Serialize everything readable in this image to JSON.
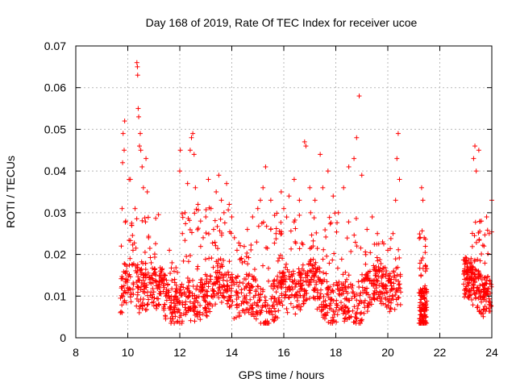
{
  "chart_data": {
    "type": "scatter",
    "title": "Day 168 of 2019, Rate Of TEC Index for receiver ucoe",
    "xlabel": "GPS time / hours",
    "ylabel": "ROTI / TECUs",
    "xlim": [
      8,
      24
    ],
    "ylim": [
      0,
      0.07
    ],
    "xticks": [
      "8",
      "10",
      "12",
      "14",
      "16",
      "18",
      "20",
      "22",
      "24"
    ],
    "yticks": [
      "0",
      "0.01",
      "0.02",
      "0.03",
      "0.04",
      "0.05",
      "0.06",
      "0.07"
    ],
    "grid": true,
    "marker": "plus",
    "color": "#ff0000",
    "coverage_segments": [
      {
        "x_start": 9.7,
        "x_end": 20.5
      },
      {
        "x_start": 21.2,
        "x_end": 21.5
      },
      {
        "x_start": 22.9,
        "x_end": 24.0
      }
    ],
    "series": [
      {
        "points": [
          [
            9.72,
            0.0095
          ],
          [
            9.75,
            0.022
          ],
          [
            9.78,
            0.031
          ],
          [
            9.8,
            0.042
          ],
          [
            9.82,
            0.049
          ],
          [
            9.86,
            0.045
          ],
          [
            9.88,
            0.052
          ],
          [
            9.92,
            0.028
          ],
          [
            9.95,
            0.016
          ],
          [
            10.0,
            0.012
          ],
          [
            10.05,
            0.038
          ],
          [
            10.1,
            0.038
          ],
          [
            10.15,
            0.027
          ],
          [
            10.2,
            0.021
          ],
          [
            10.28,
            0.031
          ],
          [
            10.35,
            0.066
          ],
          [
            10.37,
            0.065
          ],
          [
            10.38,
            0.063
          ],
          [
            10.4,
            0.055
          ],
          [
            10.42,
            0.053
          ],
          [
            10.45,
            0.046
          ],
          [
            10.48,
            0.049
          ],
          [
            10.5,
            0.045
          ],
          [
            10.55,
            0.041
          ],
          [
            10.6,
            0.036
          ],
          [
            10.7,
            0.043
          ],
          [
            10.75,
            0.035
          ],
          [
            10.8,
            0.024
          ],
          [
            10.9,
            0.018
          ],
          [
            11.0,
            0.011
          ],
          [
            11.1,
            0.007
          ],
          [
            11.2,
            0.012
          ],
          [
            11.3,
            0.016
          ],
          [
            11.4,
            0.013
          ],
          [
            11.5,
            0.009
          ],
          [
            11.6,
            0.021
          ],
          [
            11.7,
            0.018
          ],
          [
            11.8,
            0.014
          ],
          [
            11.9,
            0.011
          ],
          [
            12.0,
            0.04
          ],
          [
            12.02,
            0.045
          ],
          [
            12.1,
            0.025
          ],
          [
            12.2,
            0.03
          ],
          [
            12.3,
            0.037
          ],
          [
            12.4,
            0.045
          ],
          [
            12.45,
            0.048
          ],
          [
            12.5,
            0.049
          ],
          [
            12.55,
            0.044
          ],
          [
            12.6,
            0.036
          ],
          [
            12.7,
            0.032
          ],
          [
            12.8,
            0.028
          ],
          [
            12.9,
            0.024
          ],
          [
            13.0,
            0.029
          ],
          [
            13.1,
            0.038
          ],
          [
            13.2,
            0.031
          ],
          [
            13.3,
            0.026
          ],
          [
            13.4,
            0.035
          ],
          [
            13.5,
            0.039
          ],
          [
            13.6,
            0.033
          ],
          [
            13.7,
            0.03
          ],
          [
            13.8,
            0.037
          ],
          [
            13.9,
            0.032
          ],
          [
            14.0,
            0.029
          ],
          [
            14.1,
            0.024
          ],
          [
            14.2,
            0.021
          ],
          [
            14.4,
            0.018
          ],
          [
            14.6,
            0.026
          ],
          [
            14.8,
            0.029
          ],
          [
            15.0,
            0.031
          ],
          [
            15.1,
            0.033
          ],
          [
            15.2,
            0.036
          ],
          [
            15.3,
            0.041
          ],
          [
            15.5,
            0.033
          ],
          [
            15.7,
            0.025
          ],
          [
            15.9,
            0.035
          ],
          [
            16.0,
            0.031
          ],
          [
            16.2,
            0.034
          ],
          [
            16.4,
            0.038
          ],
          [
            16.6,
            0.033
          ],
          [
            16.8,
            0.047
          ],
          [
            16.85,
            0.046
          ],
          [
            17.0,
            0.036
          ],
          [
            17.2,
            0.033
          ],
          [
            17.4,
            0.044
          ],
          [
            17.5,
            0.036
          ],
          [
            17.7,
            0.04
          ],
          [
            17.9,
            0.034
          ],
          [
            18.1,
            0.03
          ],
          [
            18.3,
            0.036
          ],
          [
            18.5,
            0.041
          ],
          [
            18.7,
            0.043
          ],
          [
            18.8,
            0.048
          ],
          [
            18.9,
            0.058
          ],
          [
            19.0,
            0.039
          ],
          [
            19.2,
            0.026
          ],
          [
            19.4,
            0.029
          ],
          [
            19.6,
            0.025
          ],
          [
            19.8,
            0.023
          ],
          [
            20.0,
            0.021
          ],
          [
            20.2,
            0.025
          ],
          [
            20.3,
            0.033
          ],
          [
            20.35,
            0.043
          ],
          [
            20.4,
            0.049
          ],
          [
            20.45,
            0.038
          ],
          [
            21.3,
            0.036
          ],
          [
            21.35,
            0.033
          ],
          [
            21.4,
            0.024
          ],
          [
            21.45,
            0.016
          ],
          [
            21.3,
            0.007
          ],
          [
            23.0,
            0.014
          ],
          [
            23.1,
            0.011
          ],
          [
            23.2,
            0.018
          ],
          [
            23.3,
            0.043
          ],
          [
            23.35,
            0.046
          ],
          [
            23.4,
            0.04
          ],
          [
            23.5,
            0.045
          ],
          [
            23.6,
            0.028
          ],
          [
            23.7,
            0.022
          ],
          [
            23.8,
            0.029
          ],
          [
            23.9,
            0.025
          ],
          [
            24.0,
            0.033
          ]
        ]
      }
    ]
  }
}
